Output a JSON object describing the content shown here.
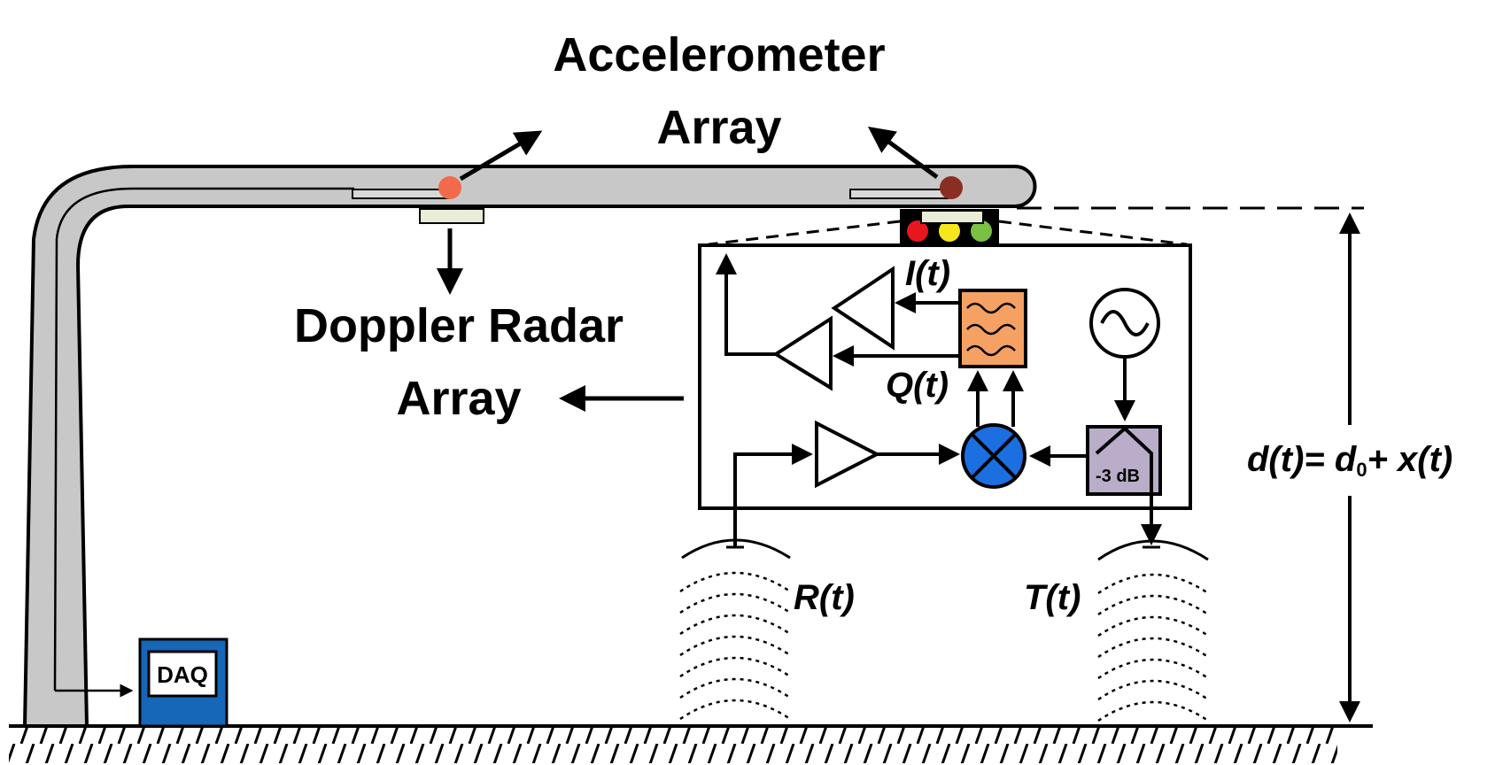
{
  "labels": {
    "accelerometer_line1": "Accelerometer",
    "accelerometer_line2": "Array",
    "doppler_line1": "Doppler Radar",
    "doppler_line2": "Array",
    "i_signal": "I(t)",
    "q_signal": "Q(t)",
    "r_signal": "R(t)",
    "t_signal": "T(t)",
    "attenuator": "-3 dB",
    "daq": "DAQ",
    "distance_lhs": "d(t)= d",
    "distance_sub": "0",
    "distance_rhs": "+ x(t)"
  },
  "colors": {
    "beam_fill": "#c8c8c8",
    "sensor_left": "#f26a4a",
    "sensor_right": "#8b2e22",
    "led_red": "#e8161e",
    "led_yellow": "#f6e61c",
    "led_green": "#7ac043",
    "filter_fill": "#f4a163",
    "mixer_fill": "#1b6fe0",
    "attenuator_fill": "#b9adc9",
    "daq_fill": "#1667b7",
    "radar_pad_fill": "#e9ecd6"
  },
  "icons": [
    "oscillator-icon",
    "mixer-icon",
    "filter-icon",
    "amplifier-icon",
    "antenna-icon"
  ]
}
